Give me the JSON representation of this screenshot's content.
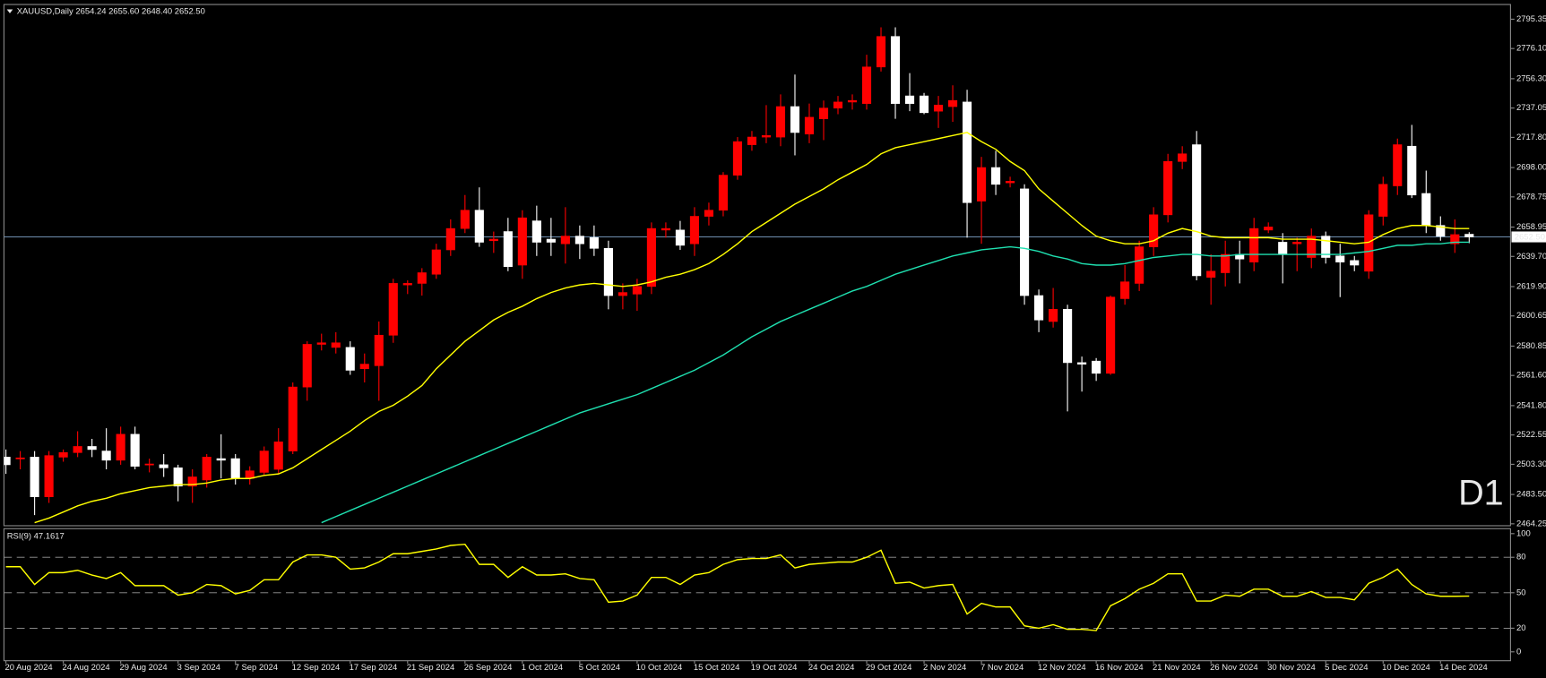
{
  "chart_data": {
    "type": "candlestick",
    "title": "XAUUSD,Daily 2654.24 2655.60 2648.40 2652.50",
    "watermark": "D1",
    "watermark_color": "#e00000",
    "categories": [
      "20 Aug 2024",
      null,
      null,
      null,
      "24 Aug 2024",
      null,
      null,
      null,
      "29 Aug 2024",
      null,
      null,
      null,
      "3 Sep 2024",
      null,
      null,
      null,
      "7 Sep 2024",
      null,
      null,
      null,
      "12 Sep 2024",
      null,
      null,
      null,
      "17 Sep 2024",
      null,
      null,
      null,
      "21 Sep 2024",
      null,
      null,
      null,
      "26 Sep 2024",
      null,
      null,
      null,
      "1 Oct 2024",
      null,
      null,
      null,
      "5 Oct 2024",
      null,
      null,
      null,
      "10 Oct 2024",
      null,
      null,
      null,
      "15 Oct 2024",
      null,
      null,
      null,
      "19 Oct 2024",
      null,
      null,
      null,
      "24 Oct 2024",
      null,
      null,
      null,
      "29 Oct 2024",
      null,
      null,
      null,
      "2 Nov 2024",
      null,
      null,
      null,
      "7 Nov 2024",
      null,
      null,
      null,
      "12 Nov 2024",
      null,
      null,
      null,
      "16 Nov 2024",
      null,
      null,
      null,
      "21 Nov 2024",
      null,
      null,
      null,
      "26 Nov 2024",
      null,
      null,
      null,
      "30 Nov 2024",
      null,
      null,
      null,
      "5 Dec 2024",
      null,
      null,
      null,
      "10 Dec 2024",
      null,
      null,
      null,
      "14 Dec 2024",
      null,
      null
    ],
    "open": [
      2508,
      2507,
      2508,
      2482,
      2508,
      2511,
      2515,
      2512,
      2506,
      2523,
      2503,
      2503,
      2501,
      2489,
      2493,
      2507,
      2507,
      2494,
      2498,
      2500,
      2512,
      2554,
      2582,
      2580,
      2580,
      2566,
      2568,
      2588,
      2621,
      2622,
      2628,
      2644,
      2658,
      2670,
      2650,
      2656,
      2634,
      2663,
      2651,
      2648,
      2653,
      2652,
      2645,
      2614,
      2615,
      2620,
      2657,
      2657,
      2648,
      2666,
      2670,
      2693,
      2713,
      2718,
      2718,
      2738,
      2720,
      2730,
      2737,
      2741,
      2740,
      2764,
      2784,
      2745,
      2745,
      2735,
      2738,
      2741,
      2676,
      2698,
      2688,
      2684,
      2614,
      2597,
      2605,
      2570,
      2571,
      2563,
      2612,
      2622,
      2646,
      2667,
      2702,
      2713,
      2626,
      2629,
      2641,
      2636,
      2657,
      2649,
      2648,
      2639,
      2653,
      2640,
      2637,
      2630,
      2666,
      2686,
      2712,
      2681,
      2660,
      2648,
      2654.24
    ],
    "high": [
      2513,
      2512,
      2512,
      2512,
      2513,
      2525,
      2520,
      2527,
      2528,
      2528,
      2507,
      2510,
      2503,
      2500,
      2510,
      2523,
      2510,
      2502,
      2515,
      2527,
      2557,
      2584,
      2589,
      2590,
      2584,
      2576,
      2597,
      2625,
      2624,
      2632,
      2648,
      2664,
      2680,
      2685,
      2656,
      2665,
      2670,
      2673,
      2665,
      2672,
      2660,
      2660,
      2650,
      2622,
      2625,
      2662,
      2662,
      2663,
      2672,
      2675,
      2695,
      2718,
      2722,
      2739,
      2746,
      2759,
      2740,
      2742,
      2745,
      2746,
      2772,
      2790,
      2790,
      2760,
      2747,
      2745,
      2752,
      2749,
      2705,
      2709,
      2692,
      2687,
      2618,
      2619,
      2608,
      2574,
      2573,
      2614,
      2634,
      2650,
      2672,
      2707,
      2712,
      2722,
      2641,
      2650,
      2650,
      2665,
      2662,
      2655,
      2652,
      2658,
      2656,
      2648,
      2640,
      2670,
      2692,
      2717,
      2726,
      2696,
      2666,
      2664,
      2655.6
    ],
    "low": [
      2497,
      2500,
      2470,
      2478,
      2505,
      2508,
      2508,
      2500,
      2503,
      2500,
      2498,
      2495,
      2479,
      2478,
      2488,
      2494,
      2490,
      2490,
      2496,
      2497,
      2510,
      2545,
      2578,
      2576,
      2562,
      2557,
      2545,
      2583,
      2615,
      2614,
      2625,
      2640,
      2655,
      2646,
      2642,
      2630,
      2625,
      2640,
      2640,
      2635,
      2638,
      2640,
      2605,
      2605,
      2604,
      2615,
      2652,
      2644,
      2640,
      2660,
      2666,
      2690,
      2709,
      2714,
      2712,
      2706,
      2714,
      2716,
      2733,
      2736,
      2736,
      2761,
      2730,
      2735,
      2733,
      2724,
      2728,
      2652,
      2648,
      2680,
      2685,
      2608,
      2590,
      2593,
      2538,
      2551,
      2558,
      2562,
      2608,
      2617,
      2640,
      2662,
      2697,
      2624,
      2608,
      2620,
      2622,
      2630,
      2655,
      2622,
      2630,
      2632,
      2635,
      2613,
      2630,
      2625,
      2660,
      2680,
      2678,
      2655,
      2650,
      2642,
      2648.4
    ],
    "close": [
      2503,
      2507.5,
      2482,
      2509,
      2511,
      2515,
      2513,
      2506,
      2523,
      2502,
      2503.5,
      2501,
      2489,
      2495,
      2508,
      2506,
      2494,
      2499,
      2512,
      2518,
      2554,
      2582,
      2583,
      2583,
      2565,
      2569,
      2588,
      2622,
      2622,
      2629,
      2644,
      2658,
      2670,
      2649,
      2651,
      2633,
      2665,
      2649,
      2649,
      2653,
      2648,
      2645,
      2614,
      2616,
      2620,
      2658,
      2658,
      2647,
      2666,
      2670,
      2693,
      2715,
      2718,
      2719,
      2738,
      2721,
      2731,
      2737,
      2741,
      2742,
      2764,
      2784,
      2740,
      2740,
      2734,
      2739,
      2742,
      2675,
      2698,
      2687,
      2689,
      2614,
      2598,
      2605,
      2570,
      2569,
      2563,
      2613,
      2623,
      2646,
      2667,
      2702,
      2707,
      2627,
      2630,
      2641,
      2638,
      2658,
      2659,
      2641,
      2649,
      2653,
      2639,
      2636,
      2634,
      2667,
      2687,
      2713,
      2680,
      2660,
      2653,
      2654,
      2652.5
    ],
    "up_color": "#ff0000",
    "down_color": "#ffffff",
    "ylim": [
      2463,
      2805
    ],
    "yticks": [
      2795.35,
      {
        "value": 2776.1,
        "label": "2776.10"
      },
      {
        "value": 2756.3,
        "label": "2756.30"
      },
      2737.05,
      {
        "value": 2717.8,
        "label": "2717.80"
      },
      {
        "value": 2698,
        "label": "2698.00"
      },
      2678.75,
      2658.95,
      {
        "value": 2639.7,
        "label": "2639.70"
      },
      {
        "value": 2619.9,
        "label": "2619.90"
      },
      2600.65,
      2580.85,
      {
        "value": 2561.6,
        "label": "2561.60"
      },
      {
        "value": 2541.8,
        "label": "2541.80"
      },
      2522.55,
      {
        "value": 2503.3,
        "label": "2503.30"
      },
      {
        "value": 2483.5,
        "label": "2483.50"
      },
      2464.25
    ],
    "grid": false,
    "current_price": {
      "value": 2652.5,
      "label": "2652.50"
    },
    "price_line_color": "#6f8faf",
    "overlays": [
      {
        "color": "#ffff00",
        "values": [
          null,
          null,
          2465,
          2468,
          2472,
          2476,
          2479,
          2481,
          2484,
          2486,
          2488,
          2489,
          2490,
          2490,
          2491,
          2493,
          2494,
          2494,
          2496,
          2497,
          2501,
          2507,
          2513,
          2519,
          2525,
          2532,
          2538,
          2542,
          2548,
          2555,
          2566,
          2575,
          2584,
          2591,
          2598,
          2603,
          2607,
          2612,
          2616,
          2619,
          2621,
          2622,
          2621,
          2620,
          2621,
          2623,
          2626,
          2628,
          2631,
          2635,
          2641,
          2648,
          2656,
          2662,
          2668,
          2674,
          2679,
          2684,
          2690,
          2695,
          2700,
          2707,
          2711,
          2713,
          2715,
          2717,
          2719,
          2721,
          2715,
          2710,
          2702,
          2696,
          2684,
          2676,
          2668,
          2660,
          2653,
          2650,
          2648,
          2648,
          2650,
          2655,
          2658,
          2656,
          2653,
          2652,
          2652,
          2652,
          2652,
          2651,
          2651,
          2651,
          2650,
          2649,
          2648,
          2649,
          2654,
          2658,
          2660,
          2660,
          2659,
          2658,
          2658
        ]
      },
      {
        "color": "#1fe0b0",
        "values": [
          null,
          null,
          null,
          null,
          null,
          null,
          null,
          null,
          null,
          null,
          null,
          null,
          null,
          null,
          null,
          null,
          null,
          null,
          null,
          null,
          null,
          null,
          2465,
          2469,
          2473,
          2477,
          2481,
          2485,
          2489,
          2493,
          2497,
          2501,
          2505,
          2509,
          2513,
          2517,
          2521,
          2525,
          2529,
          2533,
          2537,
          2540,
          2543,
          2546,
          2549,
          2553,
          2557,
          2561,
          2565,
          2570,
          2575,
          2581,
          2587,
          2592,
          2597,
          2601,
          2605,
          2609,
          2613,
          2617,
          2620,
          2624,
          2628,
          2631,
          2634,
          2637,
          2640,
          2642,
          2644,
          2645,
          2646,
          2645,
          2643,
          2640,
          2638,
          2635,
          2634,
          2634,
          2635,
          2637,
          2639,
          2640,
          2641,
          2641,
          2640,
          2640,
          2641,
          2641,
          2641,
          2641,
          2641,
          2641,
          2641,
          2641,
          2642,
          2643,
          2645,
          2647,
          2647,
          2648,
          2648,
          2649,
          2649
        ]
      }
    ],
    "rsi": {
      "title": "RSI(9) 47.1617",
      "color": "#ffff00",
      "values": [
        72,
        72,
        57,
        67,
        67,
        69,
        65,
        62,
        67,
        56,
        56,
        56,
        48,
        50,
        57,
        56,
        49,
        52,
        61,
        61,
        76,
        82,
        82,
        80,
        70,
        71,
        76,
        83,
        83,
        85,
        87,
        90,
        91,
        74,
        74,
        63,
        72,
        65,
        65,
        66,
        62,
        61,
        42,
        43,
        48,
        63,
        63,
        57,
        65,
        67,
        74,
        78,
        79,
        79,
        82,
        71,
        74,
        75,
        76,
        76,
        80,
        86,
        58,
        59,
        54,
        56,
        57,
        32,
        41,
        38,
        38,
        22,
        20,
        23,
        19,
        19,
        18,
        39,
        45,
        53,
        58,
        66,
        66,
        43,
        43,
        48,
        47,
        53,
        53,
        47,
        47,
        51,
        46,
        46,
        44,
        58,
        63,
        70,
        57,
        49,
        47,
        47,
        47.1617
      ],
      "ylim": [
        -7.5,
        104.2
      ],
      "yticks": [
        100,
        80,
        50,
        20,
        0
      ],
      "levels": [
        80,
        50,
        20
      ]
    }
  }
}
